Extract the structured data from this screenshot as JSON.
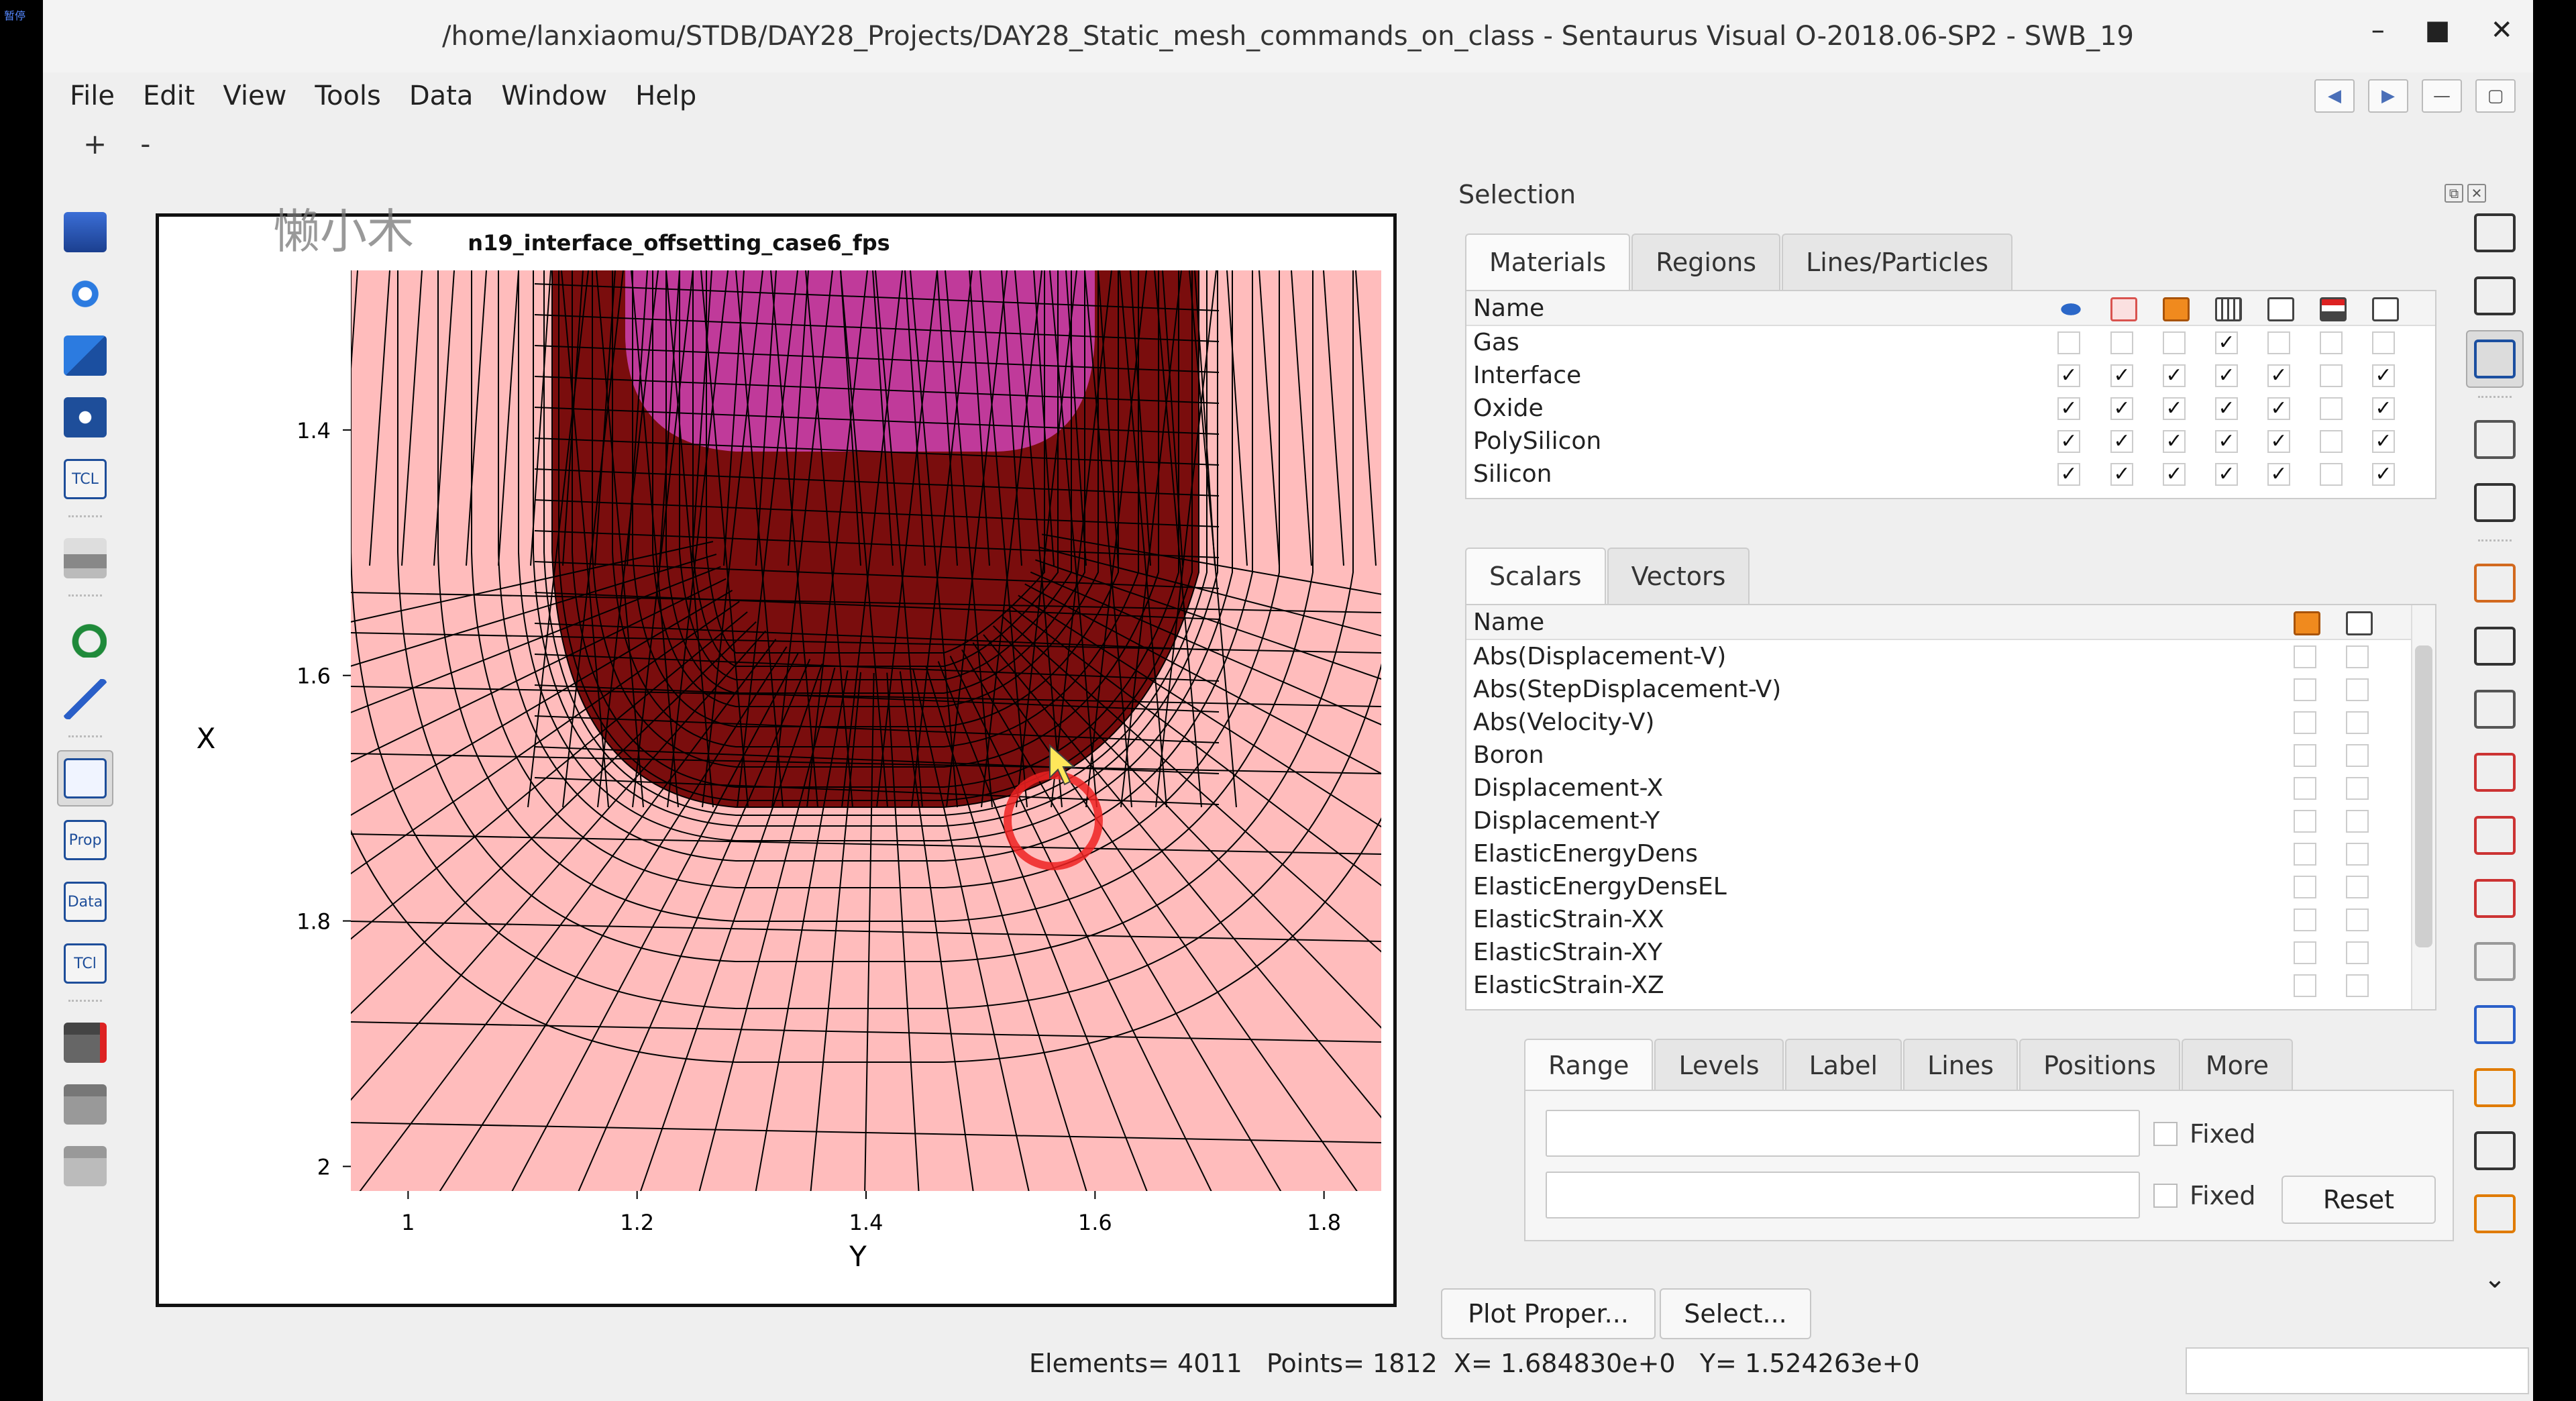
{
  "corner_label": "暂停",
  "window": {
    "title": "/home/lanxiaomu/STDB/DAY28_Projects/DAY28_Static_mesh_commands_on_class - Sentaurus Visual O-2018.06-SP2 - SWB_19",
    "min": "–",
    "max": "■",
    "close": "✕"
  },
  "menu": [
    "File",
    "Edit",
    "View",
    "Tools",
    "Data",
    "Window",
    "Help"
  ],
  "zoom": {
    "plus": "+",
    "minus": "-"
  },
  "left_toolbar": [
    "open-icon",
    "reload-icon",
    "reload-all-icon",
    "snapshot-icon",
    "tcl-script-icon",
    "print-icon",
    "undo-icon",
    "draw-icon",
    "plot-view-icon",
    "prop-icon",
    "data-icon",
    "tcl-console-icon",
    "movie-record-icon",
    "movie-icon",
    "movie-stop-icon"
  ],
  "left_toolbar_text": {
    "tcl": "TCL",
    "prop": "Prop",
    "data": "Data",
    "tcl2": "TCl"
  },
  "plot": {
    "watermark": "懒小木",
    "title": "n19_interface_offsetting_case6_fps",
    "xlabel": "Y",
    "ylabel": "X",
    "xticks": [
      "1",
      "1.2",
      "1.4",
      "1.6",
      "1.8"
    ],
    "yticks": [
      "1.4",
      "1.6",
      "1.8",
      "2"
    ],
    "colors": {
      "silicon": "#ffbcbc",
      "oxide": "#7a0d0d",
      "poly": "#c03a9a",
      "mesh": "#000000",
      "cursor": "#ee2222"
    }
  },
  "chart_data": {
    "type": "mesh",
    "title": "n19_interface_offsetting_case6_fps",
    "xlabel": "Y",
    "ylabel": "X",
    "xlim": [
      0.95,
      1.85
    ],
    "ylim": [
      1.27,
      2.02
    ],
    "y_inverted": true,
    "regions": [
      "Silicon",
      "Oxide",
      "PolySilicon"
    ]
  },
  "selection": {
    "header": "Selection",
    "mat_tabs": [
      "Materials",
      "Regions",
      "Lines/Particles"
    ],
    "mat_header": "Name",
    "mat_header_icons": [
      "visible-eye-icon",
      "mesh-icon",
      "faces-icon",
      "region-icon",
      "outline-icon",
      "contour-icon",
      "label-icon"
    ],
    "materials": [
      {
        "name": "Gas",
        "checks": [
          false,
          false,
          false,
          true,
          false,
          false,
          false
        ]
      },
      {
        "name": "Interface",
        "checks": [
          true,
          true,
          true,
          true,
          true,
          false,
          true
        ]
      },
      {
        "name": "Oxide",
        "checks": [
          true,
          true,
          true,
          true,
          true,
          false,
          true
        ]
      },
      {
        "name": "PolySilicon",
        "checks": [
          true,
          true,
          true,
          true,
          true,
          false,
          true
        ]
      },
      {
        "name": "Silicon",
        "checks": [
          true,
          true,
          true,
          true,
          true,
          false,
          true
        ]
      }
    ],
    "field_tabs": [
      "Scalars",
      "Vectors"
    ],
    "sc_header": "Name",
    "scalars": [
      "Abs(Displacement-V)",
      "Abs(StepDisplacement-V)",
      "Abs(Velocity-V)",
      "Boron",
      "Displacement-X",
      "Displacement-Y",
      "ElasticEnergyDens",
      "ElasticEnergyDensEL",
      "ElasticStrain-XX",
      "ElasticStrain-XY",
      "ElasticStrain-XZ"
    ],
    "prop_tabs": [
      "Range",
      "Levels",
      "Label",
      "Lines",
      "Positions",
      "More"
    ],
    "fixed_label": "Fixed",
    "reset": "Reset",
    "plot_prop": "Plot Proper...",
    "select_btn": "Select...",
    "check": "✓"
  },
  "status": "Elements= 4011   Points= 1812  X= 1.684830e+0   Y= 1.524263e+0",
  "right_toolbar": [
    "pointer-icon",
    "fit-icon",
    "zoom-icon",
    "link-icon",
    "link-s-icon",
    "probe-icon",
    "ruler-icon",
    "cut-icon",
    "cutplane-icon",
    "cut-x-icon",
    "cut-y-icon",
    "cut-z-icon",
    "axes-icon",
    "colorbar-icon",
    "move-icon",
    "layers-icon",
    "more-chevron-icon"
  ]
}
